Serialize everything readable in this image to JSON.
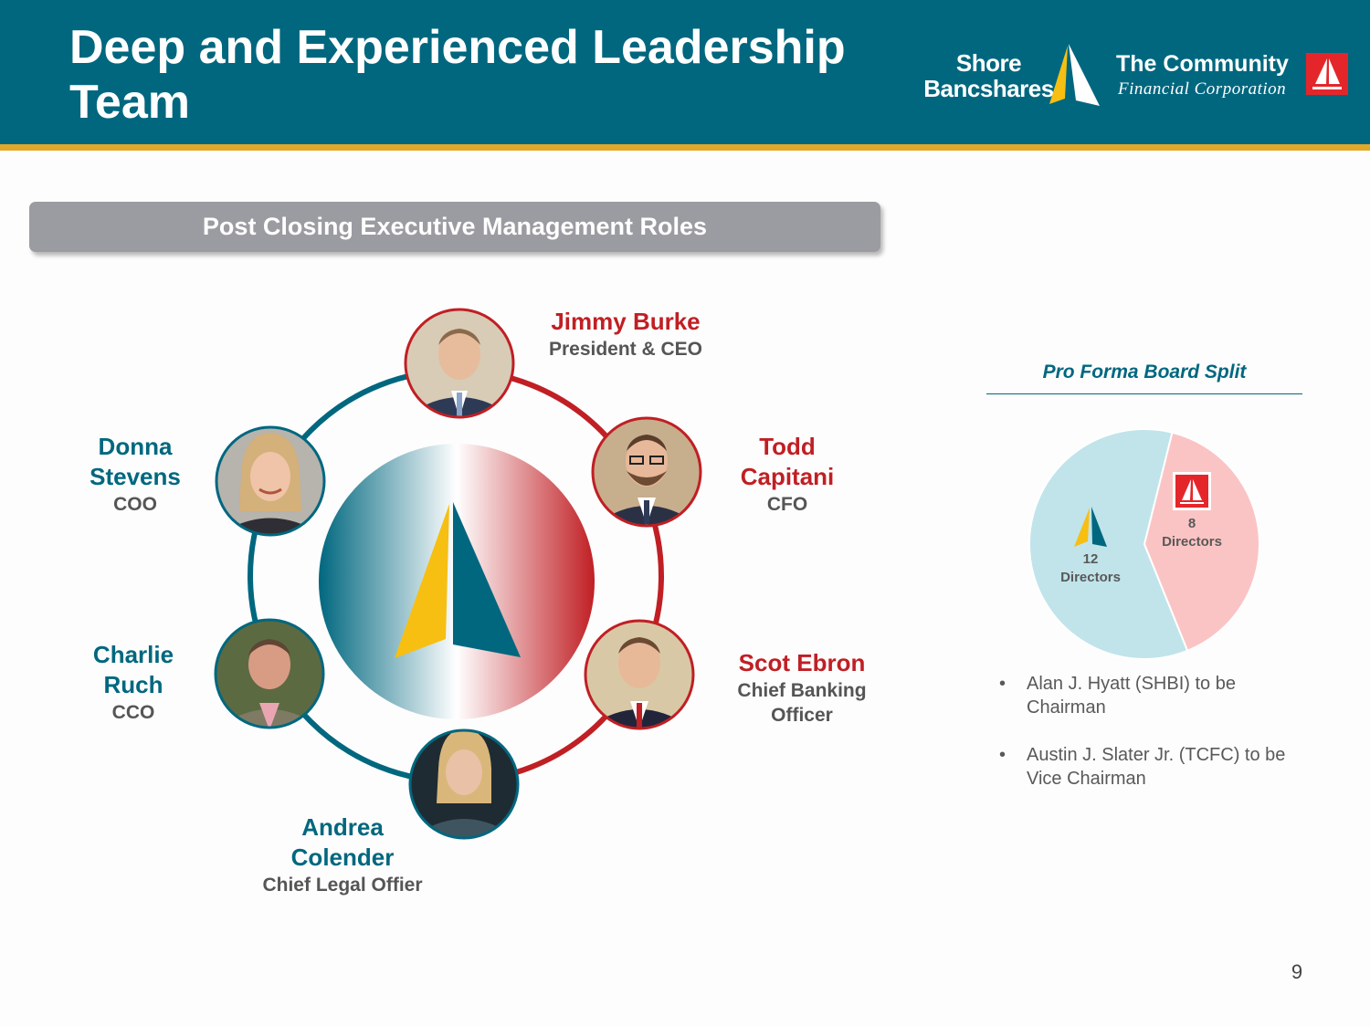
{
  "header": {
    "title": "Deep and Experienced Leadership Team",
    "logos": {
      "shore_bancshares": {
        "line1": "Shore",
        "line2": "Bancshares"
      },
      "tcfc": {
        "name": "The Community",
        "subtitle": "Financial Corporation"
      }
    }
  },
  "section_title": "Post Closing Executive Management Roles",
  "executives": [
    {
      "name": "Jimmy Burke",
      "role": "President & CEO",
      "color": "#c01f24"
    },
    {
      "name_line1": "Todd",
      "name_line2": "Capitani",
      "role": "CFO",
      "color": "#c01f24"
    },
    {
      "name": "Scot Ebron",
      "role_line1": "Chief Banking",
      "role_line2": "Officer",
      "color": "#c01f24"
    },
    {
      "name_line1": "Andrea",
      "name_line2": "Colender",
      "role": "Chief Legal Offier",
      "color": "#00677f"
    },
    {
      "name_line1": "Charlie",
      "name_line2": "Ruch",
      "role": "CCO",
      "color": "#00677f"
    },
    {
      "name_line1": "Donna",
      "name_line2": "Stevens",
      "role": "COO",
      "color": "#00677f"
    }
  ],
  "board": {
    "title": "Pro Forma Board Split",
    "shore": {
      "count": "12",
      "label": "Directors",
      "color": "#c0e4ea"
    },
    "tcfc": {
      "count": "8",
      "label": "Directors",
      "color": "#fbc4c4"
    },
    "bullets": [
      "Alan J. Hyatt (SHBI) to be Chairman",
      "Austin J. Slater Jr. (TCFC) to be Vice Chairman"
    ]
  },
  "chart_data": {
    "type": "pie",
    "title": "Pro Forma Board Split",
    "categories": [
      "Shore Bancshares",
      "The Community Financial Corporation"
    ],
    "values": [
      12,
      8
    ]
  },
  "page_number": "9",
  "colors": {
    "teal": "#00677f",
    "red": "#c01f24",
    "gold": "#e2a82a",
    "sail_yellow": "#f6bf12"
  }
}
